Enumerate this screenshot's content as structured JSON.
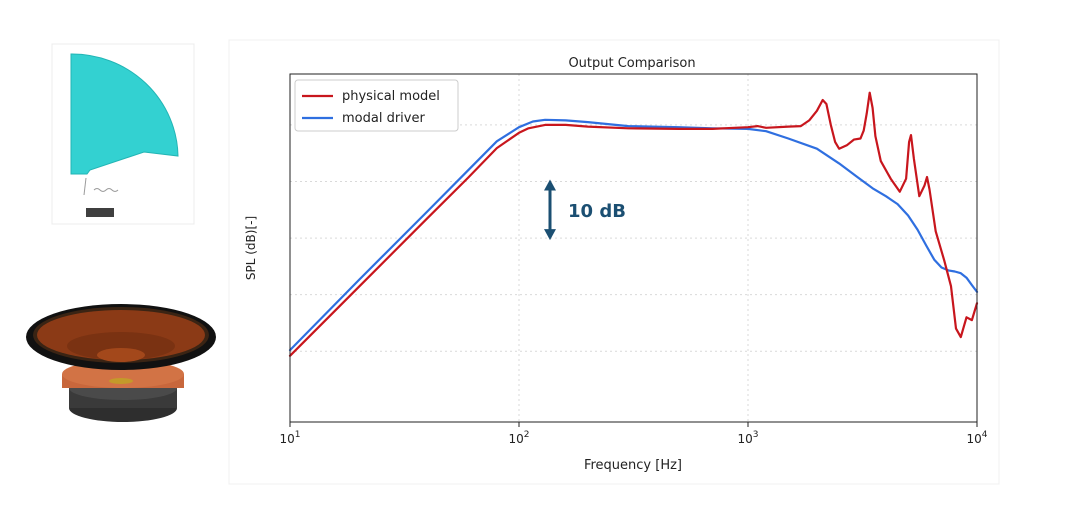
{
  "colors": {
    "physical_model": "#c8161d",
    "modal_driver": "#2f6fe0",
    "annotation": "#1b4f72",
    "axes_cone": "#2dcfcf",
    "driver_rim": "#111111",
    "driver_cone": "#8b3a16",
    "driver_copper": "#c8673c",
    "driver_magnet": "#3a3a3a",
    "grid": "#d9d9d9"
  },
  "illustrations": {
    "axisym_model": "axisymmetric-cone-model",
    "speaker_driver": "3d-loudspeaker-driver"
  },
  "annotation": {
    "arrow_icon": "double-arrow-icon",
    "label": "10 dB",
    "span_db": 10
  },
  "chart_data": {
    "type": "line",
    "title": "Output Comparison",
    "xlabel": "Frequency [Hz]",
    "ylabel": "SPL (dB)[-]",
    "xscale": "log",
    "xlim": [
      10,
      10000
    ],
    "ylim": [
      -52.5,
      9
    ],
    "x_ticks": [
      10,
      100,
      1000,
      10000
    ],
    "x_tick_labels": [
      {
        "base": "10",
        "exp": "1"
      },
      {
        "base": "10",
        "exp": "2"
      },
      {
        "base": "10",
        "exp": "3"
      },
      {
        "base": "10",
        "exp": "4"
      }
    ],
    "y_gridlines": [
      -40,
      -30,
      -20,
      -10,
      0
    ],
    "grid": true,
    "legend": {
      "position": "top-left"
    },
    "series": [
      {
        "name": "physical model",
        "color": "#c8161d",
        "points": [
          [
            10,
            -40.8
          ],
          [
            20,
            -28.6
          ],
          [
            40,
            -16.4
          ],
          [
            60,
            -9.3
          ],
          [
            80,
            -4.1
          ],
          [
            100,
            -1.4
          ],
          [
            110,
            -0.6
          ],
          [
            130,
            0.0
          ],
          [
            160,
            0.0
          ],
          [
            200,
            -0.3
          ],
          [
            300,
            -0.6
          ],
          [
            500,
            -0.7
          ],
          [
            700,
            -0.7
          ],
          [
            1000,
            -0.4
          ],
          [
            1100,
            -0.2
          ],
          [
            1200,
            -0.5
          ],
          [
            1500,
            -0.3
          ],
          [
            1700,
            -0.2
          ],
          [
            1850,
            0.8
          ],
          [
            2000,
            2.5
          ],
          [
            2120,
            4.4
          ],
          [
            2200,
            3.7
          ],
          [
            2300,
            0.0
          ],
          [
            2400,
            -3.0
          ],
          [
            2500,
            -4.2
          ],
          [
            2700,
            -3.6
          ],
          [
            2900,
            -2.6
          ],
          [
            3100,
            -2.4
          ],
          [
            3200,
            -1.0
          ],
          [
            3300,
            2.0
          ],
          [
            3400,
            5.7
          ],
          [
            3500,
            3.0
          ],
          [
            3600,
            -2.0
          ],
          [
            3800,
            -6.4
          ],
          [
            4200,
            -9.5
          ],
          [
            4600,
            -11.8
          ],
          [
            4900,
            -9.5
          ],
          [
            5050,
            -3.0
          ],
          [
            5150,
            -1.8
          ],
          [
            5300,
            -6.0
          ],
          [
            5600,
            -12.6
          ],
          [
            5900,
            -10.7
          ],
          [
            6050,
            -9.2
          ],
          [
            6200,
            -11.4
          ],
          [
            6600,
            -18.8
          ],
          [
            7200,
            -24.0
          ],
          [
            7700,
            -28.5
          ],
          [
            8100,
            -36.0
          ],
          [
            8500,
            -37.5
          ],
          [
            9000,
            -34.0
          ],
          [
            9500,
            -34.5
          ],
          [
            10000,
            -31.5
          ]
        ]
      },
      {
        "name": "modal driver",
        "color": "#2f6fe0",
        "points": [
          [
            10,
            -39.8
          ],
          [
            20,
            -27.4
          ],
          [
            40,
            -15.2
          ],
          [
            60,
            -8.0
          ],
          [
            80,
            -2.9
          ],
          [
            100,
            -0.4
          ],
          [
            115,
            0.6
          ],
          [
            130,
            0.9
          ],
          [
            160,
            0.8
          ],
          [
            200,
            0.5
          ],
          [
            300,
            -0.2
          ],
          [
            500,
            -0.4
          ],
          [
            700,
            -0.6
          ],
          [
            1000,
            -0.7
          ],
          [
            1200,
            -1.1
          ],
          [
            1500,
            -2.4
          ],
          [
            2000,
            -4.2
          ],
          [
            2500,
            -6.8
          ],
          [
            3000,
            -9.2
          ],
          [
            3500,
            -11.2
          ],
          [
            4000,
            -12.6
          ],
          [
            4500,
            -14.0
          ],
          [
            5000,
            -16.0
          ],
          [
            5500,
            -18.5
          ],
          [
            6000,
            -21.3
          ],
          [
            6500,
            -23.8
          ],
          [
            7000,
            -25.2
          ],
          [
            7500,
            -25.7
          ],
          [
            8000,
            -25.9
          ],
          [
            8500,
            -26.2
          ],
          [
            9000,
            -27.0
          ],
          [
            9500,
            -28.3
          ],
          [
            10000,
            -29.5
          ]
        ]
      }
    ]
  }
}
